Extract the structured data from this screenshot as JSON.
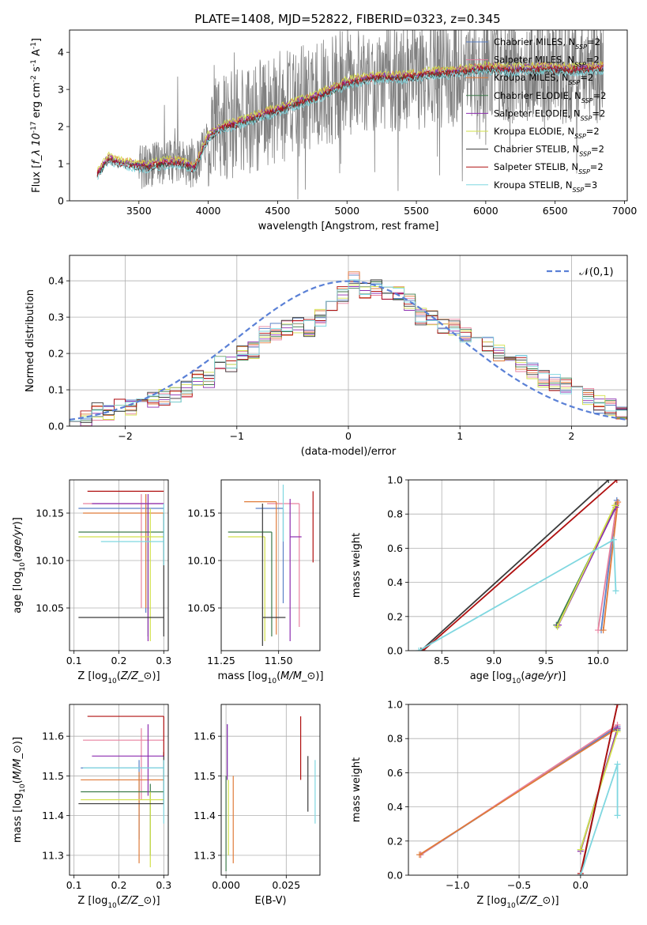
{
  "figure": {
    "title": "PLATE=1408, MJD=52822, FIBERID=0323, z=0.345"
  },
  "models": [
    {
      "name": "Chabrier MILES, N$_{SSP}$=2",
      "label_main": "Chabrier MILES, N",
      "label_sub": "SSP",
      "label_tail": "=2",
      "color": "#5a80c6"
    },
    {
      "name": "Salpeter MILES, N$_{SSP}$=2",
      "label_main": "Salpeter MILES, N",
      "label_sub": "SSP",
      "label_tail": "=2",
      "color": "#e8829f"
    },
    {
      "name": "Kroupa MILES, N$_{SSP}$=2",
      "label_main": "Kroupa MILES, N",
      "label_sub": "SSP",
      "label_tail": "=2",
      "color": "#e07b39"
    },
    {
      "name": "Chabrier ELODIE, N$_{SSP}$=2",
      "label_main": "Chabrier ELODIE, N",
      "label_sub": "SSP",
      "label_tail": "=2",
      "color": "#3c7a4a"
    },
    {
      "name": "Salpeter ELODIE, N$_{SSP}$=2",
      "label_main": "Salpeter ELODIE, N",
      "label_sub": "SSP",
      "label_tail": "=2",
      "color": "#8c2db0"
    },
    {
      "name": "Kroupa ELODIE, N$_{SSP}$=2",
      "label_main": "Kroupa ELODIE, N",
      "label_sub": "SSP",
      "label_tail": "=2",
      "color": "#d2e04a"
    },
    {
      "name": "Chabrier STELIB, N$_{SSP}$=2",
      "label_main": "Chabrier STELIB, N",
      "label_sub": "SSP",
      "label_tail": "=2",
      "color": "#3a3a3a"
    },
    {
      "name": "Salpeter STELIB, N$_{SSP}$=2",
      "label_main": "Salpeter STELIB, N",
      "label_sub": "SSP",
      "label_tail": "=2",
      "color": "#b01010"
    },
    {
      "name": "Kroupa STELIB, N$_{SSP}$=3",
      "label_main": "Kroupa STELIB, N",
      "label_sub": "SSP",
      "label_tail": "=3",
      "color": "#7fd7e0"
    }
  ],
  "chart_data": [
    {
      "id": "spectrum",
      "type": "line",
      "xlabel": "wavelength [Angstrom, rest frame]",
      "ylabel": "Flux [$f_\\lambda 10^{-17}$ erg cm$^{-2}$ s$^{-1}$ A$^{-1}$]",
      "xlim": [
        3000,
        7020
      ],
      "ylim": [
        0,
        4.6
      ],
      "xticks": [
        3500,
        4000,
        4500,
        5000,
        5500,
        6000,
        6500,
        7000
      ],
      "yticks": [
        0,
        1,
        2,
        3,
        4
      ],
      "data_color": "#808080",
      "x_range": [
        3200,
        6850
      ],
      "continuum": [
        [
          3200,
          0.75
        ],
        [
          3280,
          1.15
        ],
        [
          3350,
          1.05
        ],
        [
          3450,
          1.0
        ],
        [
          3550,
          0.95
        ],
        [
          3700,
          1.05
        ],
        [
          3800,
          1.05
        ],
        [
          3900,
          0.9
        ],
        [
          4000,
          1.75
        ],
        [
          4100,
          2.0
        ],
        [
          4200,
          2.1
        ],
        [
          4400,
          2.35
        ],
        [
          4600,
          2.6
        ],
        [
          4800,
          2.85
        ],
        [
          5000,
          3.2
        ],
        [
          5200,
          3.35
        ],
        [
          5400,
          3.35
        ],
        [
          5600,
          3.45
        ],
        [
          5800,
          3.5
        ],
        [
          6000,
          3.6
        ],
        [
          6200,
          3.55
        ],
        [
          6400,
          3.6
        ],
        [
          6600,
          3.55
        ],
        [
          6850,
          3.6
        ]
      ],
      "model_offsets": [
        0.0,
        -0.02,
        0.05,
        -0.05,
        0.03,
        0.08,
        -0.08,
        -0.04,
        -0.12
      ],
      "legend": "upper right"
    },
    {
      "id": "residuals",
      "type": "histogram",
      "xlabel": "(data-model)/error",
      "ylabel": "Normed distribution",
      "xlim": [
        -2.5,
        2.5
      ],
      "ylim": [
        0,
        0.47
      ],
      "xticks": [
        -2,
        -1,
        0,
        1,
        2
      ],
      "yticks": [
        0.0,
        0.1,
        0.2,
        0.3,
        0.4
      ],
      "grid": true,
      "bin_width": 0.1,
      "bin_start": -2.5,
      "base_values": [
        0.02,
        0.02,
        0.04,
        0.04,
        0.05,
        0.05,
        0.06,
        0.07,
        0.08,
        0.09,
        0.1,
        0.13,
        0.13,
        0.18,
        0.17,
        0.2,
        0.21,
        0.25,
        0.26,
        0.27,
        0.28,
        0.27,
        0.3,
        0.33,
        0.36,
        0.4,
        0.37,
        0.38,
        0.37,
        0.36,
        0.34,
        0.3,
        0.3,
        0.28,
        0.27,
        0.25,
        0.24,
        0.23,
        0.2,
        0.18,
        0.17,
        0.15,
        0.13,
        0.12,
        0.11,
        0.09,
        0.08,
        0.06,
        0.05,
        0.04
      ],
      "gauss_label": "$\\mathcal{N}(0,1)$",
      "gauss_color": "#5a80d6",
      "legend": "upper right"
    },
    {
      "id": "age_vs_Z",
      "type": "errorbar",
      "xlabel": "Z [log$_{10}$($Z/Z_\\odot$)]",
      "ylabel": "age  [log$_{10}$($age/yr$)]",
      "xlim": [
        0.09,
        0.31
      ],
      "ylim": [
        10.005,
        10.185
      ],
      "xticks": [
        0.1,
        0.2,
        0.3
      ],
      "yticks": [
        10.05,
        10.1,
        10.15
      ],
      "grid": true,
      "points": [
        {
          "x": 0.26,
          "xerr": [
            0.15,
            0.04
          ],
          "y": 10.155,
          "yerr": [
            0.11,
            0.015
          ]
        },
        {
          "x": 0.25,
          "xerr": [
            0.13,
            0.05
          ],
          "y": 10.16,
          "yerr": [
            0.11,
            0.01
          ]
        },
        {
          "x": 0.26,
          "xerr": [
            0.14,
            0.04
          ],
          "y": 10.15,
          "yerr": [
            0.1,
            0.02
          ]
        },
        {
          "x": 0.265,
          "xerr": [
            0.155,
            0.035
          ],
          "y": 10.13,
          "yerr": [
            0.11,
            0.03
          ]
        },
        {
          "x": 0.265,
          "xerr": [
            0.125,
            0.035
          ],
          "y": 10.16,
          "yerr": [
            0.145,
            0.01
          ]
        },
        {
          "x": 0.27,
          "xerr": [
            0.16,
            0.03
          ],
          "y": 10.125,
          "yerr": [
            0.11,
            0.03
          ]
        },
        {
          "x": 0.3,
          "xerr": [
            0.19,
            0.0
          ],
          "y": 10.04,
          "yerr": [
            0.02,
            0.11
          ]
        },
        {
          "x": 0.3,
          "xerr": [
            0.17,
            0.0
          ],
          "y": 10.173,
          "yerr": [
            0.0,
            0.0
          ]
        },
        {
          "x": 0.3,
          "xerr": [
            0.14,
            0.0
          ],
          "y": 10.12,
          "yerr": [
            0.025,
            0.04
          ]
        }
      ]
    },
    {
      "id": "age_vs_mass",
      "type": "errorbar",
      "xlabel": "mass [log$_{10}$($M/M_\\odot$)]",
      "ylabel": "",
      "xlim": [
        11.25,
        11.68
      ],
      "ylim": [
        10.005,
        10.185
      ],
      "xticks": [
        11.25,
        11.5
      ],
      "xticklabels": [
        "11.25",
        "11.50"
      ],
      "yticks": [
        10.05,
        10.1,
        10.15
      ],
      "grid": true,
      "points": [
        {
          "x": 11.52,
          "xerr": [
            0.12,
            0.0
          ],
          "y": 10.155,
          "yerr": [
            0.1,
            0.0
          ]
        },
        {
          "x": 11.59,
          "xerr": [
            0.14,
            0.0
          ],
          "y": 10.16,
          "yerr": [
            0.13,
            0.0
          ]
        },
        {
          "x": 11.49,
          "xerr": [
            0.14,
            0.0
          ],
          "y": 10.162,
          "yerr": [
            0.14,
            0.0
          ]
        },
        {
          "x": 11.47,
          "xerr": [
            0.19,
            0.0
          ],
          "y": 10.13,
          "yerr": [
            0.11,
            0.0
          ]
        },
        {
          "x": 11.55,
          "xerr": [
            0.0,
            0.05
          ],
          "y": 10.125,
          "yerr": [
            0.11,
            0.04
          ]
        },
        {
          "x": 11.44,
          "xerr": [
            0.16,
            0.0
          ],
          "y": 10.125,
          "yerr": [
            0.11,
            0.0
          ]
        },
        {
          "x": 11.43,
          "xerr": [
            0.0,
            0.1
          ],
          "y": 10.04,
          "yerr": [
            0.03,
            0.12
          ]
        },
        {
          "x": 11.65,
          "xerr": [
            0.0,
            0.0
          ],
          "y": 10.173,
          "yerr": [
            0.075,
            0.0
          ]
        },
        {
          "x": 11.52,
          "xerr": [
            0.0,
            0.0
          ],
          "y": 10.12,
          "yerr": [
            0.0,
            0.06
          ]
        }
      ]
    },
    {
      "id": "mass_weight_vs_age",
      "type": "line",
      "xlabel": "age  [log$_{10}$($age/yr$)]",
      "ylabel": "mass weight",
      "xlim": [
        8.18,
        10.28
      ],
      "ylim": [
        0,
        1
      ],
      "xticks": [
        8.5,
        9.0,
        9.5,
        10.0
      ],
      "xticklabels": [
        "8.5",
        "9.0",
        "9.5",
        "10.0"
      ],
      "yticks": [
        0.0,
        0.2,
        0.4,
        0.6,
        0.8,
        1.0
      ],
      "grid": true,
      "series": [
        {
          "x": [
            10.03,
            10.18
          ],
          "y": [
            0.12,
            0.88
          ]
        },
        {
          "x": [
            10.0,
            10.18
          ],
          "y": [
            0.12,
            0.86
          ]
        },
        {
          "x": [
            10.05,
            10.19
          ],
          "y": [
            0.12,
            0.87
          ]
        },
        {
          "x": [
            9.6,
            10.17
          ],
          "y": [
            0.15,
            0.85
          ]
        },
        {
          "x": [
            9.62,
            10.17
          ],
          "y": [
            0.15,
            0.84
          ]
        },
        {
          "x": [
            9.61,
            10.16
          ],
          "y": [
            0.14,
            0.85
          ]
        },
        {
          "x": [
            8.3,
            10.1
          ],
          "y": [
            0.0,
            1.0
          ]
        },
        {
          "x": [
            8.32,
            10.18
          ],
          "y": [
            0.0,
            1.0
          ]
        },
        {
          "x": [
            8.28,
            10.15,
            10.17
          ],
          "y": [
            0.0,
            0.65,
            0.35
          ]
        }
      ]
    },
    {
      "id": "mass_vs_Z",
      "type": "errorbar",
      "xlabel": "Z [log$_{10}$($Z/Z_\\odot$)]",
      "ylabel": "mass [log$_{10}$($M/M_\\odot$)]",
      "xlim": [
        0.09,
        0.31
      ],
      "ylim": [
        11.25,
        11.68
      ],
      "xticks": [
        0.1,
        0.2,
        0.3
      ],
      "yticks": [
        11.3,
        11.4,
        11.5,
        11.6
      ],
      "grid": true,
      "points": [
        {
          "x": 0.245,
          "xerr": [
            0.13,
            0.055
          ],
          "y": 11.52,
          "yerr": [
            0.18,
            0.02
          ]
        },
        {
          "x": 0.25,
          "xerr": [
            0.13,
            0.05
          ],
          "y": 11.59,
          "yerr": [
            0.15,
            0.03
          ]
        },
        {
          "x": 0.245,
          "xerr": [
            0.13,
            0.055
          ],
          "y": 11.49,
          "yerr": [
            0.21,
            0.02
          ]
        },
        {
          "x": 0.27,
          "xerr": [
            0.155,
            0.03
          ],
          "y": 11.46,
          "yerr": [
            0.16,
            0.02
          ]
        },
        {
          "x": 0.265,
          "xerr": [
            0.125,
            0.035
          ],
          "y": 11.55,
          "yerr": [
            0.1,
            0.08
          ]
        },
        {
          "x": 0.27,
          "xerr": [
            0.155,
            0.03
          ],
          "y": 11.44,
          "yerr": [
            0.17,
            0.02
          ]
        },
        {
          "x": 0.3,
          "xerr": [
            0.19,
            0.0
          ],
          "y": 11.43,
          "yerr": [
            0.0,
            0.13
          ]
        },
        {
          "x": 0.3,
          "xerr": [
            0.17,
            0.0
          ],
          "y": 11.65,
          "yerr": [
            0.1,
            0.0
          ]
        },
        {
          "x": 0.3,
          "xerr": [
            0.18,
            0.0
          ],
          "y": 11.52,
          "yerr": [
            0.14,
            0.02
          ]
        }
      ]
    },
    {
      "id": "mass_vs_EBV",
      "type": "errorbar",
      "xlabel": "E(B-V)",
      "ylabel": "",
      "xlim": [
        -0.002,
        0.039
      ],
      "ylim": [
        11.25,
        11.68
      ],
      "xticks": [
        0.0,
        0.025
      ],
      "xticklabels": [
        "0.000",
        "0.025"
      ],
      "yticks": [
        11.3,
        11.4,
        11.5,
        11.6
      ],
      "grid": true,
      "points": [
        {
          "x": 0.0005,
          "xerr": [
            0,
            0
          ],
          "y": 11.6,
          "yerr": [
            0.1,
            0.03
          ]
        },
        {
          "x": 0.0,
          "xerr": [
            0,
            0
          ],
          "y": 11.5,
          "yerr": [
            0.2,
            0.0
          ]
        },
        {
          "x": 0.003,
          "xerr": [
            0,
            0
          ],
          "y": 11.5,
          "yerr": [
            0.22,
            0.0
          ]
        },
        {
          "x": 0.0,
          "xerr": [
            0,
            0
          ],
          "y": 11.4,
          "yerr": [
            0.14,
            0.1
          ]
        },
        {
          "x": 0.0005,
          "xerr": [
            0,
            0
          ],
          "y": 11.55,
          "yerr": [
            0.06,
            0.08
          ]
        },
        {
          "x": 0.001,
          "xerr": [
            0,
            0
          ],
          "y": 11.44,
          "yerr": [
            0.14,
            0.05
          ]
        },
        {
          "x": 0.034,
          "xerr": [
            0,
            0
          ],
          "y": 11.5,
          "yerr": [
            0.09,
            0.05
          ]
        },
        {
          "x": 0.031,
          "xerr": [
            0,
            0
          ],
          "y": 11.55,
          "yerr": [
            0.06,
            0.1
          ]
        },
        {
          "x": 0.037,
          "xerr": [
            0,
            0
          ],
          "y": 11.45,
          "yerr": [
            0.07,
            0.09
          ]
        }
      ]
    },
    {
      "id": "mass_weight_vs_Z",
      "type": "line",
      "xlabel": "Z [log$_{10}$($Z/Z_\\odot$)]",
      "ylabel": "mass weight",
      "xlim": [
        -1.4,
        0.38
      ],
      "ylim": [
        0,
        1
      ],
      "xticks": [
        -1.0,
        -0.5,
        0.0
      ],
      "xticklabels": [
        "−1.0",
        "−0.5",
        "0.0"
      ],
      "yticks": [
        0.0,
        0.2,
        0.4,
        0.6,
        0.8,
        1.0
      ],
      "grid": true,
      "series": [
        {
          "x": [
            -1.3,
            0.3
          ],
          "y": [
            0.12,
            0.87
          ]
        },
        {
          "x": [
            -1.3,
            0.3
          ],
          "y": [
            0.12,
            0.88
          ]
        },
        {
          "x": [
            -1.31,
            0.3
          ],
          "y": [
            0.12,
            0.86
          ]
        },
        {
          "x": [
            0.0,
            0.3
          ],
          "y": [
            0.15,
            0.85
          ]
        },
        {
          "x": [
            0.0,
            0.3
          ],
          "y": [
            0.14,
            0.86
          ]
        },
        {
          "x": [
            0.0,
            0.3
          ],
          "y": [
            0.15,
            0.84
          ]
        },
        {
          "x": [
            0.0,
            0.3
          ],
          "y": [
            0.0,
            1.0
          ]
        },
        {
          "x": [
            0.0,
            0.3
          ],
          "y": [
            0.01,
            1.0
          ]
        },
        {
          "x": [
            0.0,
            0.3,
            0.3
          ],
          "y": [
            0.0,
            0.65,
            0.35
          ]
        }
      ]
    }
  ]
}
